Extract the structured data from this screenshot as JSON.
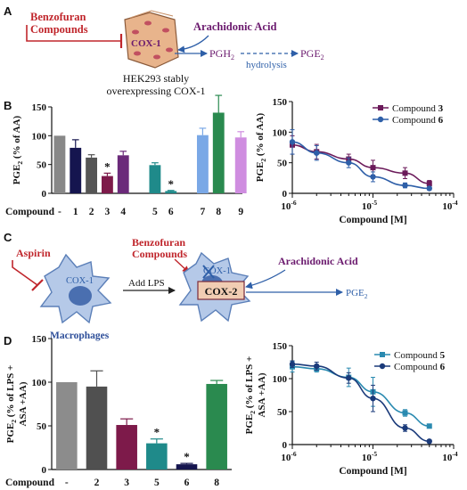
{
  "panels": {
    "A": {
      "letter": "A",
      "compounds_label_1": "Benzofuran",
      "compounds_label_2": "Compounds",
      "enzyme": "COX-1",
      "substrate": "Arachidonic Acid",
      "intermediate_main": "PGH",
      "intermediate_sub": "2",
      "product_main": "PGE",
      "product_sub": "2",
      "process": "hydrolysis",
      "cell_line_1": "HEK293 stably",
      "cell_line_2": "overexpressing COX-1"
    },
    "B": {
      "letter": "B"
    },
    "C": {
      "letter": "C",
      "inhibitor": "Aspirin",
      "compounds_label_1": "Benzofuran",
      "compounds_label_2": "Compounds",
      "enzyme1": "COX-1",
      "enzyme1b": "COX-1",
      "enzyme2": "COX-2",
      "stimulus": "Add LPS",
      "substrate": "Arachidonic Acid",
      "product_main": "PGE",
      "product_sub": "2",
      "cell_type": "Macrophages"
    },
    "D": {
      "letter": "D"
    }
  },
  "colors": {
    "red": "#c0262c",
    "purple": "#6b1a6e",
    "blue": "#2e5fa8",
    "cell": "#b5c9e8",
    "cellEdge": "#5b7fb8",
    "hek": "#e6b48c"
  },
  "chart_data": [
    {
      "type": "bar",
      "panel": "B-left",
      "ylabel_main": "PGE",
      "ylabel_sub": "2",
      "ylabel_rest": "(% of AA)",
      "xlabel": "Compound",
      "ylim": [
        0,
        150
      ],
      "yticks": [
        0,
        50,
        100,
        150
      ],
      "categories": [
        "-",
        "1",
        "2",
        "3",
        "4",
        "5",
        "6",
        "7",
        "8",
        "9"
      ],
      "values": [
        100,
        79,
        62,
        30,
        66,
        49,
        4,
        101,
        140,
        97
      ],
      "errors": [
        0,
        14,
        5,
        5,
        7,
        4,
        1,
        12,
        30,
        10
      ],
      "colors": [
        "#888888",
        "#15154f",
        "#555555",
        "#7d1a4a",
        "#6b2a7a",
        "#1f8a8a",
        "#1f8a8a",
        "#7aa8e6",
        "#2a8a4f",
        "#cf8de0"
      ],
      "significant": [
        "3",
        "6"
      ],
      "star": "*"
    },
    {
      "type": "line",
      "panel": "B-right",
      "ylabel_main": "PGE",
      "ylabel_sub": "2",
      "ylabel_rest": "(% of AA)",
      "xlabel": "Compound [M]",
      "xscale": "log",
      "xlim": [
        1e-06,
        0.0001
      ],
      "xtick_labels": [
        [
          "10",
          "-6"
        ],
        [
          "10",
          "-5"
        ],
        [
          "10",
          "-4"
        ]
      ],
      "ylim": [
        0,
        150
      ],
      "yticks": [
        0,
        50,
        100,
        150
      ],
      "legend_position": "top-right",
      "series": [
        {
          "name_main": "Compound",
          "name_num": "3",
          "color": "#6b1a5a",
          "marker": "square",
          "x": [
            1e-06,
            2e-06,
            5e-06,
            1e-05,
            2.5e-05,
            5e-05
          ],
          "y": [
            79,
            68,
            56,
            42,
            33,
            16
          ],
          "err": [
            15,
            12,
            8,
            12,
            9,
            5
          ]
        },
        {
          "name_main": "Compound",
          "name_num": "6",
          "color": "#2e5fa8",
          "marker": "circle",
          "x": [
            1e-06,
            2e-06,
            5e-06,
            1e-05,
            2.5e-05,
            5e-05
          ],
          "y": [
            84,
            66,
            50,
            27,
            13,
            8
          ],
          "err": [
            20,
            12,
            8,
            8,
            4,
            3
          ]
        }
      ]
    },
    {
      "type": "bar",
      "panel": "D-left",
      "ylabel_line1_main": "PGE",
      "ylabel_line1_sub": "2",
      "ylabel_line1_rest": "(% of LPS +",
      "ylabel_line2": "ASA +AA)",
      "xlabel": "Compound",
      "ylim": [
        0,
        150
      ],
      "yticks": [
        0,
        50,
        100,
        150
      ],
      "categories": [
        "-",
        "2",
        "3",
        "5",
        "6",
        "8"
      ],
      "values": [
        100,
        95,
        51,
        30,
        6,
        98
      ],
      "errors": [
        0,
        18,
        7,
        5,
        1,
        4
      ],
      "colors": [
        "#8c8c8c",
        "#505050",
        "#7d1a4a",
        "#1f8a8a",
        "#15154f",
        "#2a8a4f"
      ],
      "significant": [
        "5",
        "6"
      ],
      "star": "*"
    },
    {
      "type": "line",
      "panel": "D-right",
      "ylabel_line1_main": "PGE",
      "ylabel_line1_sub": "2",
      "ylabel_line1_rest": "(% of LPS +",
      "ylabel_line2": "ASA +AA)",
      "xlabel": "Compound [M]",
      "xscale": "log",
      "xlim": [
        1e-06,
        0.0001
      ],
      "xtick_labels": [
        [
          "10",
          "-6"
        ],
        [
          "10",
          "-5"
        ],
        [
          "10",
          "-4"
        ]
      ],
      "ylim": [
        0,
        150
      ],
      "yticks": [
        0,
        50,
        100,
        150
      ],
      "legend_position": "top-right",
      "series": [
        {
          "name_main": "Compound",
          "name_num": "5",
          "color": "#2a8ab0",
          "marker": "square",
          "x": [
            1e-06,
            2e-06,
            5e-06,
            1e-05,
            2.5e-05,
            5e-05
          ],
          "y": [
            118,
            115,
            102,
            80,
            48,
            28
          ],
          "err": [
            8,
            5,
            14,
            22,
            5,
            3
          ]
        },
        {
          "name_main": "Compound",
          "name_num": "6",
          "color": "#1a3a7a",
          "marker": "circle",
          "x": [
            1e-06,
            2e-06,
            5e-06,
            1e-05,
            2.5e-05,
            5e-05
          ],
          "y": [
            122,
            119,
            101,
            70,
            25,
            5
          ],
          "err": [
            5,
            6,
            8,
            20,
            5,
            2
          ]
        }
      ]
    }
  ]
}
